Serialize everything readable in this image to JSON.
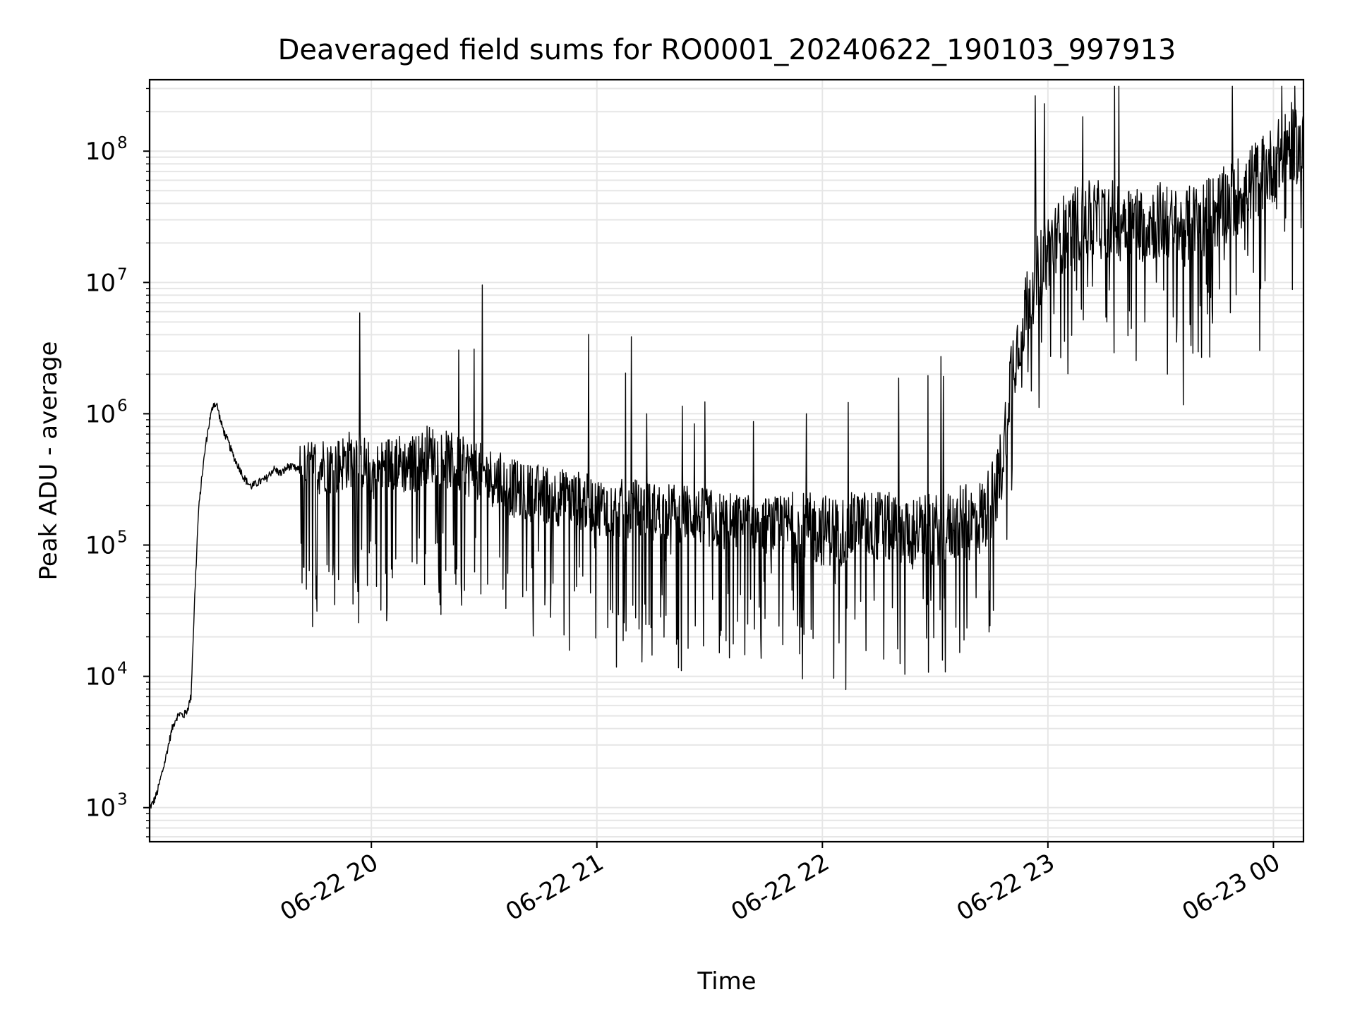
{
  "chart_data": {
    "type": "line",
    "title": "Deaveraged field sums for RO0001_20240622_190103_997913",
    "xlabel": "Time",
    "ylabel": "Peak ADU - average",
    "x_axis": {
      "kind": "time",
      "range": [
        "06-22 19:01",
        "06-23 00:08"
      ],
      "ticks": [
        "06-22 20",
        "06-22 21",
        "06-22 22",
        "06-22 23",
        "06-23 00"
      ]
    },
    "y_axis": {
      "scale": "log",
      "range": [
        550,
        350000000
      ],
      "ticks": [
        {
          "base": "10",
          "exp": "3",
          "value": 1000
        },
        {
          "base": "10",
          "exp": "4",
          "value": 10000
        },
        {
          "base": "10",
          "exp": "5",
          "value": 100000
        },
        {
          "base": "10",
          "exp": "6",
          "value": 1000000
        },
        {
          "base": "10",
          "exp": "7",
          "value": 10000000
        },
        {
          "base": "10",
          "exp": "8",
          "value": 100000000
        }
      ]
    },
    "grid": true,
    "legend": "none",
    "series": [
      {
        "color": "#000000",
        "x": [
          "06-22 19:01",
          "06-22 19:02",
          "06-22 19:03",
          "06-22 19:04",
          "06-22 19:05",
          "06-22 19:06",
          "06-22 19:07",
          "06-22 19:08",
          "06-22 19:09",
          "06-22 19:10",
          "06-22 19:11",
          "06-22 19:12",
          "06-22 19:13",
          "06-22 19:14",
          "06-22 19:15",
          "06-22 19:16",
          "06-22 19:17",
          "06-22 19:18",
          "06-22 19:19",
          "06-22 19:20",
          "06-22 19:21",
          "06-22 19:22",
          "06-22 19:23",
          "06-22 19:24",
          "06-22 19:25",
          "06-22 19:26",
          "06-22 19:27",
          "06-22 19:28",
          "06-22 19:30",
          "06-22 19:32",
          "06-22 19:34",
          "06-22 19:36",
          "06-22 19:38",
          "06-22 19:40",
          "06-22 19:42",
          "06-22 19:44",
          "06-22 19:46",
          "06-22 19:48",
          "06-22 19:50",
          "06-22 19:52",
          "06-22 19:54",
          "06-22 19:56",
          "06-22 19:58",
          "06-22 20:00",
          "06-22 20:03",
          "06-22 20:06",
          "06-22 20:09",
          "06-22 20:12",
          "06-22 20:15",
          "06-22 20:18",
          "06-22 20:21",
          "06-22 20:24",
          "06-22 20:27",
          "06-22 20:30",
          "06-22 20:35",
          "06-22 20:40",
          "06-22 20:45",
          "06-22 20:50",
          "06-22 20:55",
          "06-22 21:00",
          "06-22 21:05",
          "06-22 21:10",
          "06-22 21:15",
          "06-22 21:20",
          "06-22 21:25",
          "06-22 21:30",
          "06-22 21:35",
          "06-22 21:40",
          "06-22 21:45",
          "06-22 21:50",
          "06-22 21:55",
          "06-22 22:00",
          "06-22 22:05",
          "06-22 22:10",
          "06-22 22:15",
          "06-22 22:20",
          "06-22 22:25",
          "06-22 22:30",
          "06-22 22:35",
          "06-22 22:38",
          "06-22 22:40",
          "06-22 22:43",
          "06-22 22:45",
          "06-22 22:48",
          "06-22 22:50",
          "06-22 22:55",
          "06-22 23:00",
          "06-22 23:05",
          "06-22 23:10",
          "06-22 23:15",
          "06-22 23:20",
          "06-22 23:25",
          "06-22 23:30",
          "06-22 23:35",
          "06-22 23:40",
          "06-22 23:45",
          "06-22 23:50",
          "06-22 23:55",
          "06-23 00:00",
          "06-23 00:05",
          "06-23 00:08"
        ],
        "y": [
          1000,
          1100,
          1300,
          1700,
          2200,
          3000,
          4000,
          4800,
          5200,
          5000,
          5500,
          7000,
          40000,
          180000,
          350000,
          600000,
          900000,
          1200000,
          1150000,
          850000,
          700000,
          600000,
          500000,
          430000,
          380000,
          330000,
          300000,
          280000,
          300000,
          320000,
          380000,
          350000,
          400000,
          380000,
          360000,
          380000,
          400000,
          420000,
          380000,
          420000,
          450000,
          480000,
          420000,
          350000,
          380000,
          450000,
          400000,
          420000,
          500000,
          480000,
          430000,
          400000,
          380000,
          350000,
          300000,
          250000,
          250000,
          230000,
          220000,
          200000,
          190000,
          190000,
          180000,
          180000,
          170000,
          160000,
          150000,
          150000,
          140000,
          140000,
          135000,
          130000,
          130000,
          140000,
          140000,
          130000,
          130000,
          130000,
          140000,
          145000,
          150000,
          170000,
          220000,
          450000,
          2000000,
          8000000,
          18000000,
          25000000,
          30000000,
          30000000,
          32000000,
          28000000,
          30000000,
          25000000,
          30000000,
          35000000,
          45000000,
          60000000,
          80000000,
          120000000,
          100000000
        ]
      }
    ]
  }
}
